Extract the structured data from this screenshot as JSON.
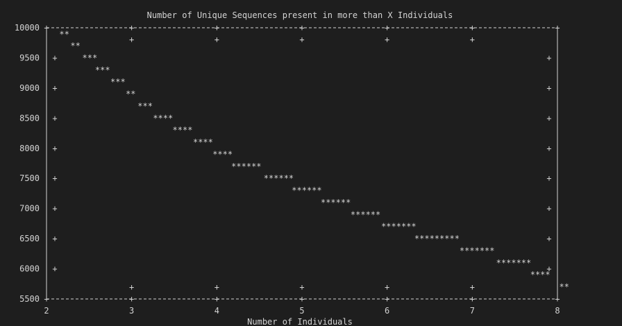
{
  "chart_data": {
    "type": "line",
    "title": "Number of Unique Sequences present in more than X Individuals",
    "xlabel": "Number of Individuals",
    "ylabel": "",
    "xlim": [
      2,
      8
    ],
    "ylim": [
      5500,
      10000
    ],
    "x_ticks": [
      2,
      3,
      4,
      5,
      6,
      7,
      8
    ],
    "y_ticks": [
      5500,
      6000,
      6500,
      7000,
      7500,
      8000,
      8500,
      9000,
      9500,
      10000
    ],
    "x_tick_labels": [
      "2",
      "3",
      "4",
      "5",
      "6",
      "7",
      "8"
    ],
    "y_tick_labels": [
      "5500",
      "6000",
      "6500",
      "7000",
      "7500",
      "8000",
      "8500",
      "9000",
      "9500",
      "10000"
    ],
    "grid": false,
    "marker": "*",
    "series": [
      {
        "values": [
          {
            "x": 2.15,
            "y": 9890
          },
          {
            "x": 2.28,
            "y": 9700
          },
          {
            "x": 2.42,
            "y": 9500
          },
          {
            "x": 2.57,
            "y": 9300
          },
          {
            "x": 2.75,
            "y": 9100
          },
          {
            "x": 2.93,
            "y": 8900
          },
          {
            "x": 3.07,
            "y": 8700
          },
          {
            "x": 3.25,
            "y": 8500
          },
          {
            "x": 3.48,
            "y": 8300
          },
          {
            "x": 3.72,
            "y": 8100
          },
          {
            "x": 3.95,
            "y": 7900
          },
          {
            "x": 4.17,
            "y": 7700
          },
          {
            "x": 4.55,
            "y": 7500
          },
          {
            "x": 4.88,
            "y": 7300
          },
          {
            "x": 5.22,
            "y": 7100
          },
          {
            "x": 5.57,
            "y": 6900
          },
          {
            "x": 5.93,
            "y": 6700
          },
          {
            "x": 6.32,
            "y": 6500
          },
          {
            "x": 6.85,
            "y": 6300
          },
          {
            "x": 7.28,
            "y": 6100
          },
          {
            "x": 7.68,
            "y": 5900
          },
          {
            "x": 8.02,
            "y": 5700
          }
        ]
      }
    ]
  }
}
